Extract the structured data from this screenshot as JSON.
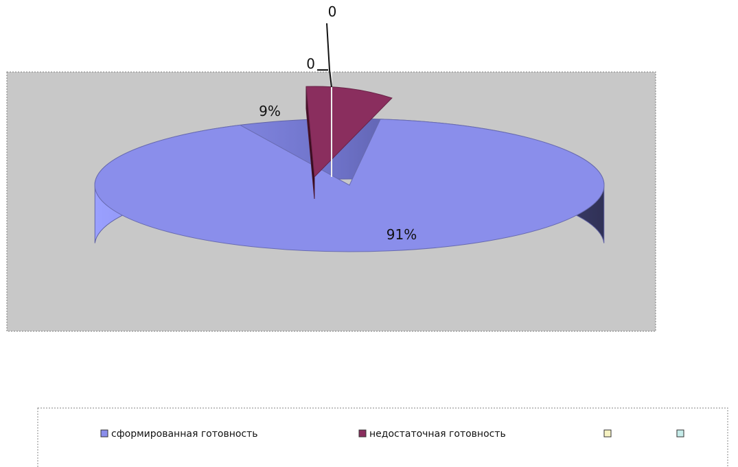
{
  "chart_data": {
    "type": "pie",
    "title": "",
    "grid": false,
    "legend_placement": "bottom",
    "slices": [
      {
        "name": "сформированная готовность",
        "value": 91,
        "label": "91%",
        "color": "#8A8EEB"
      },
      {
        "name": "недостаточная готовность",
        "value": 9,
        "label": "9%",
        "color": "#8A2E5E"
      },
      {
        "name": "",
        "value": 0,
        "label": "0",
        "color": "#F6F2C2"
      },
      {
        "name": "",
        "value": 0,
        "label": "0",
        "color": "#C6ECEA"
      }
    ]
  },
  "colors": {
    "plot_background": "#C8C8C8",
    "plot_border": "#8E8E8E",
    "legend_border": "#9A9A9A",
    "label_text": "#111111"
  }
}
